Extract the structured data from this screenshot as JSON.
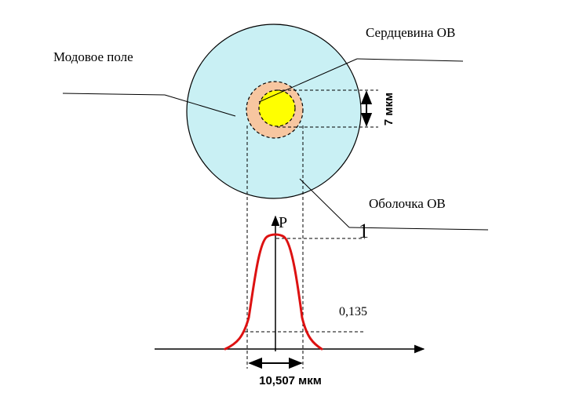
{
  "labels": {
    "mode_field": "Модовое поле",
    "core": "Сердцевина ОВ",
    "cladding": "Оболочка ОВ",
    "core_dim": "7 мкм",
    "axis_p": "P",
    "level_one": "1",
    "level_low": "0,135",
    "mfd_dim": "10,507 мкм"
  },
  "colors": {
    "cladding_fill": "#c9f0f4",
    "mode_field_fill": "#f7c6a0",
    "core_fill": "#ffff00",
    "curve": "#dd1111",
    "lines": "#000000"
  }
}
